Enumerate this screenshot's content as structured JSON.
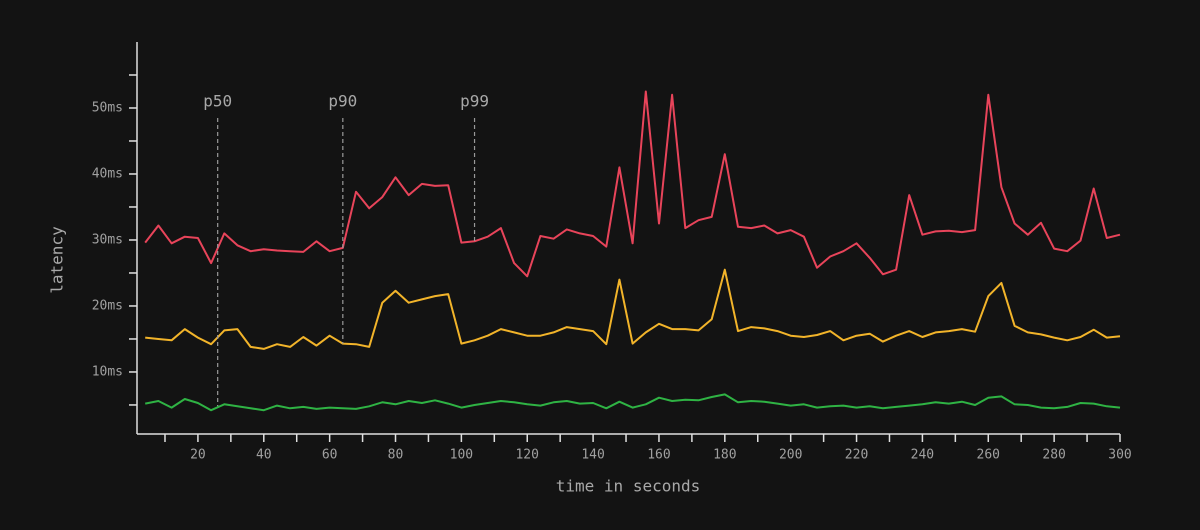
{
  "chart_data": {
    "type": "line",
    "xlabel": "time in seconds",
    "ylabel": "latency",
    "xlim": [
      1.5,
      300
    ],
    "ylim": [
      0.6,
      60
    ],
    "xticks": [
      20,
      40,
      60,
      80,
      100,
      120,
      140,
      160,
      180,
      200,
      220,
      240,
      260,
      280,
      300
    ],
    "xminorticks": [
      10,
      30,
      50,
      70,
      90,
      110,
      130,
      150,
      170,
      190,
      210,
      230,
      250,
      270,
      290
    ],
    "yticks": [
      {
        "value": 10,
        "label": "10ms"
      },
      {
        "value": 20,
        "label": "20ms"
      },
      {
        "value": 30,
        "label": "30ms"
      },
      {
        "value": 40,
        "label": "40ms"
      },
      {
        "value": 50,
        "label": "50ms"
      }
    ],
    "yminorticks": [
      5,
      15,
      25,
      35,
      45,
      55
    ],
    "x": [
      4,
      8,
      12,
      16,
      20,
      24,
      28,
      32,
      36,
      40,
      44,
      48,
      52,
      56,
      60,
      64,
      68,
      72,
      76,
      80,
      84,
      88,
      92,
      96,
      100,
      104,
      108,
      112,
      116,
      120,
      124,
      128,
      132,
      136,
      140,
      144,
      148,
      152,
      156,
      160,
      164,
      168,
      172,
      176,
      180,
      184,
      188,
      192,
      196,
      200,
      204,
      208,
      212,
      216,
      220,
      224,
      228,
      232,
      236,
      240,
      244,
      248,
      252,
      256,
      260,
      264,
      268,
      272,
      276,
      280,
      284,
      288,
      292,
      296,
      300
    ],
    "series": [
      {
        "color": "#e8445a",
        "values": [
          29.6,
          32.2,
          29.5,
          30.5,
          30.3,
          26.5,
          31,
          29.2,
          28.3,
          28.6,
          28.4,
          28.3,
          28.2,
          29.8,
          28.3,
          28.8,
          37.3,
          34.8,
          36.5,
          39.5,
          36.8,
          38.5,
          38.2,
          38.3,
          29.6,
          29.8,
          30.5,
          31.8,
          26.5,
          24.5,
          30.6,
          30.2,
          31.6,
          31,
          30.6,
          29,
          41,
          29.5,
          52.5,
          32.5,
          52,
          31.8,
          33,
          33.5,
          43,
          32,
          31.8,
          32.2,
          31,
          31.5,
          30.5,
          25.8,
          27.5,
          28.3,
          29.5,
          27.3,
          24.8,
          25.5,
          36.8,
          30.8,
          31.3,
          31.4,
          31.2,
          31.5,
          52,
          38,
          32.5,
          30.8,
          32.6,
          28.7,
          28.3,
          29.9,
          37.8,
          30.3,
          30.8
        ]
      },
      {
        "color": "#f2b42a",
        "values": [
          15.2,
          15,
          14.8,
          16.5,
          15.2,
          14.2,
          16.3,
          16.5,
          13.8,
          13.5,
          14.2,
          13.8,
          15.3,
          14,
          15.5,
          14.3,
          14.2,
          13.8,
          20.5,
          22.3,
          20.5,
          21,
          21.5,
          21.8,
          14.3,
          14.8,
          15.5,
          16.5,
          16,
          15.5,
          15.5,
          16,
          16.8,
          16.5,
          16.2,
          14.2,
          24,
          14.3,
          16,
          17.3,
          16.5,
          16.5,
          16.3,
          18,
          25.5,
          16.2,
          16.8,
          16.6,
          16.2,
          15.5,
          15.3,
          15.6,
          16.2,
          14.8,
          15.5,
          15.8,
          14.6,
          15.5,
          16.2,
          15.3,
          16,
          16.2,
          16.5,
          16.1,
          21.5,
          23.5,
          17,
          16,
          15.7,
          15.2,
          14.8,
          15.3,
          16.4,
          15.2,
          15.4
        ]
      },
      {
        "color": "#2fb344",
        "values": [
          5.2,
          5.6,
          4.6,
          5.9,
          5.3,
          4.2,
          5.1,
          4.8,
          4.5,
          4.2,
          4.9,
          4.5,
          4.7,
          4.4,
          4.6,
          4.5,
          4.4,
          4.8,
          5.4,
          5.1,
          5.6,
          5.3,
          5.7,
          5.2,
          4.6,
          5.0,
          5.3,
          5.6,
          5.4,
          5.1,
          4.9,
          5.4,
          5.6,
          5.2,
          5.3,
          4.5,
          5.5,
          4.6,
          5.1,
          6.1,
          5.6,
          5.8,
          5.7,
          6.2,
          6.6,
          5.4,
          5.6,
          5.5,
          5.2,
          4.9,
          5.1,
          4.6,
          4.8,
          4.9,
          4.6,
          4.8,
          4.5,
          4.7,
          4.9,
          5.1,
          5.4,
          5.2,
          5.5,
          5.0,
          6.1,
          6.3,
          5.1,
          5.0,
          4.6,
          4.5,
          4.7,
          5.3,
          5.2,
          4.8,
          4.6
        ]
      }
    ],
    "annotations": [
      {
        "label": "p50",
        "x": 26,
        "y": 4.8
      },
      {
        "label": "p90",
        "x": 64,
        "y": 14.3
      },
      {
        "label": "p99",
        "x": 104,
        "y": 29.8
      }
    ]
  }
}
